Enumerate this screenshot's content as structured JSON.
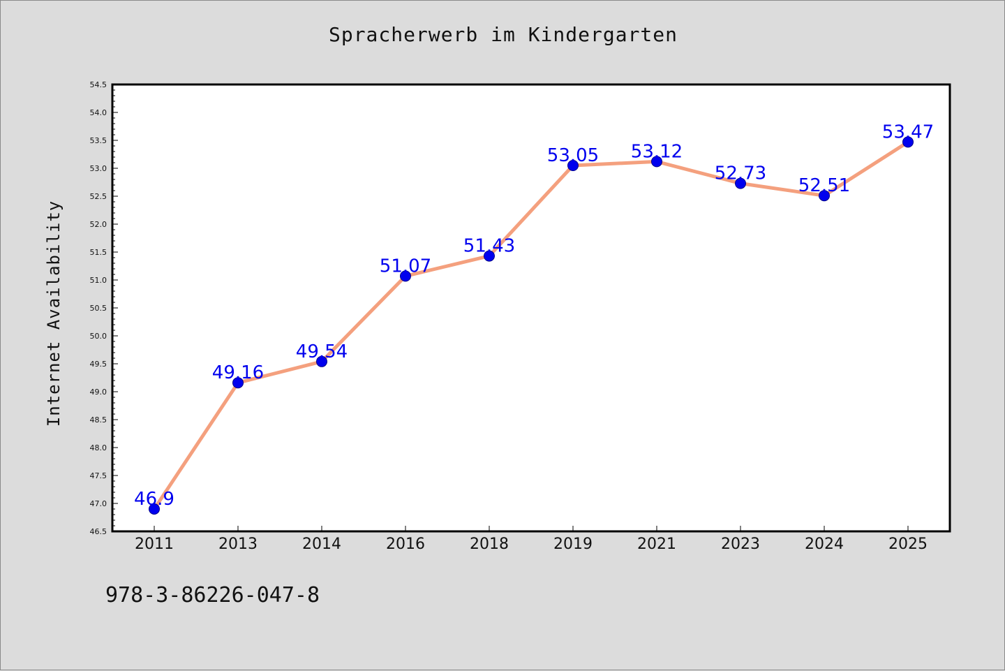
{
  "chart_data": {
    "type": "line",
    "title": "Spracherwerb im Kindergarten",
    "xlabel": "",
    "ylabel": "Internet Availability",
    "categories": [
      "2011",
      "2013",
      "2014",
      "2016",
      "2018",
      "2019",
      "2021",
      "2023",
      "2024",
      "2025"
    ],
    "series": [
      {
        "values": [
          46.9,
          49.16,
          49.54,
          51.07,
          51.43,
          53.05,
          53.12,
          52.73,
          52.51,
          53.47
        ],
        "labels": [
          "46.9",
          "49.16",
          "49.54",
          "51.07",
          "51.43",
          "53.05",
          "53.12",
          "52.73",
          "52.51",
          "53.47"
        ]
      }
    ],
    "ylim": [
      46.5,
      54.5
    ],
    "yticks": [
      "46.5",
      "47.0",
      "47.5",
      "48.0",
      "48.5",
      "49.0",
      "49.5",
      "50.0",
      "50.5",
      "51.0",
      "51.5",
      "52.0",
      "52.5",
      "53.0",
      "53.5",
      "54.0",
      "54.5"
    ],
    "grid": false,
    "colors": {
      "line": "#f4a07e",
      "marker": "#0000ee",
      "label": "#0000ee"
    }
  },
  "footer": {
    "isbn": "978-3-86226-047-8"
  }
}
